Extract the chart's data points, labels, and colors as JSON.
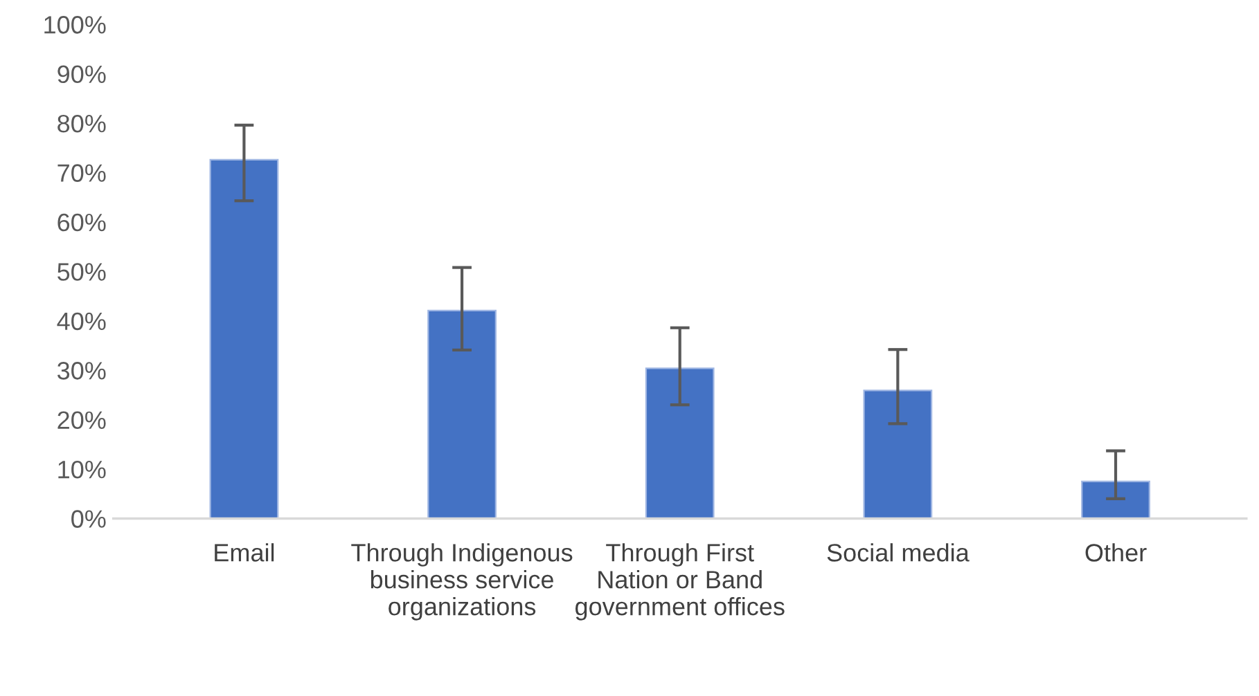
{
  "chart_data": {
    "type": "bar",
    "categories": [
      "Email",
      "Through Indigenous business service organizations",
      "Through First Nation or Band government offices",
      "Social media",
      "Other"
    ],
    "values": [
      72.6,
      42.1,
      30.4,
      25.9,
      7.5
    ],
    "errors": [
      [
        64.3,
        79.6
      ],
      [
        34.1,
        50.8
      ],
      [
        23.0,
        38.6
      ],
      [
        19.2,
        34.2
      ],
      [
        4.0,
        13.7
      ]
    ],
    "color": "#4472c4",
    "ylim": [
      0,
      100
    ],
    "yticks": [
      {
        "value": 0,
        "label": "0%"
      },
      {
        "value": 10,
        "label": "10%"
      },
      {
        "value": 20,
        "label": "20%"
      },
      {
        "value": 30,
        "label": "30%"
      },
      {
        "value": 40,
        "label": "40%"
      },
      {
        "value": 50,
        "label": "50%"
      },
      {
        "value": 60,
        "label": "60%"
      },
      {
        "value": 70,
        "label": "70%"
      },
      {
        "value": 80,
        "label": "80%"
      },
      {
        "value": 90,
        "label": "90%"
      },
      {
        "value": 100,
        "label": "100%"
      }
    ],
    "grid": false
  }
}
